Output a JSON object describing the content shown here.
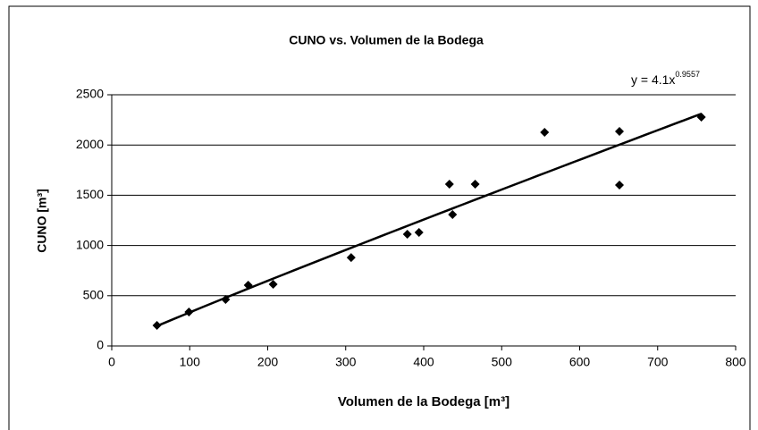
{
  "chart_data": {
    "type": "scatter",
    "title": "CUNO vs. Volumen de la Bodega",
    "x_label": "Volumen de la Bodega [m³]",
    "y_label": "CUNO [m³]",
    "x": [
      58,
      99,
      146,
      175,
      207,
      307,
      379,
      394,
      433,
      437,
      466,
      555,
      651,
      651,
      756
    ],
    "values": [
      205,
      338,
      463,
      605,
      614,
      880,
      1112,
      1130,
      1610,
      1308,
      1610,
      2126,
      2135,
      1601,
      2278
    ],
    "color": "#000000",
    "xlim": [
      0,
      800
    ],
    "xticks": [
      0,
      100,
      200,
      300,
      400,
      500,
      600,
      700,
      800
    ],
    "ylim": [
      0,
      2500
    ],
    "yticks": [
      0,
      500,
      1000,
      1500,
      2000,
      2500
    ],
    "grid": true,
    "trendline": {
      "coefficient": 4.1,
      "exponent": 0.9557,
      "equation": "y = 4.1x",
      "equation_exponent": "0.9557"
    }
  }
}
